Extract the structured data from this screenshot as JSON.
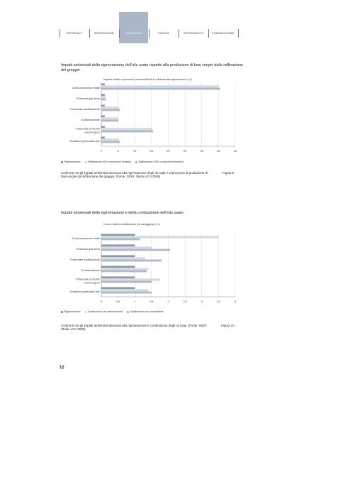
{
  "nav": {
    "tabs": [
      {
        "label": "EDITORIALE",
        "active": false
      },
      {
        "label": "INTRODUZIONE",
        "active": false
      },
      {
        "label": "CONSORZIO",
        "active": true
      },
      {
        "label": "EUROPA",
        "active": false
      },
      {
        "label": "SOSTENIBILITÀ",
        "active": false
      },
      {
        "label": "COMUNICAZIONE",
        "active": false
      }
    ]
  },
  "figure9": {
    "title": "Impatti ambientali della rigenerazione dell'olio usato rispetto alla produzione di basi vergini dalla raffinazione del greggio",
    "caption": "Confronto tra gli impatti ambientali associati alla rigenerazione degli oli usati e al processo di produzione di basi vergini da raffinazione del greggio. (Fonte: GEIR, Studio LCA 2005)",
    "number": "Figura 9"
  },
  "figure10": {
    "title": "Impatti ambientali della rigenerazione e della combustione dell'olio usato",
    "caption": "Confronto tra gli impatti ambientali associati alla rigenerazione e combustione degli oli usati. (Fonte: GEIR, Studio LCA 2005)",
    "number": "Figura 10"
  },
  "page_number": "12",
  "chart_data": [
    {
      "type": "bar",
      "orientation": "horizontal",
      "title": "Impatti ambientali della rigenerazione dell'olio usato rispetto alla produzione di basi vergini dalla raffinazione del greggio",
      "axis_title": "Impatto relativo ai processi primari sostituiti in relazione alla rigenerazione (=1)",
      "categories": [
        "Consumo risorse fossili",
        "Emissioni gas serra",
        "Potenziale acidificazione",
        "Eutrofizzazione",
        "Potenziale di rischio cancerogeno",
        "Emissioni particolato fine"
      ],
      "series": [
        {
          "name": "Rigenerazione",
          "color": "#8a96a6",
          "values": [
            1,
            1,
            1,
            1,
            1,
            1
          ]
        },
        {
          "name": "Raffinazione (0% componenti sintetici)",
          "color": "#d4dae2",
          "values": [
            35,
            1.2,
            5.3,
            5,
            15.2,
            5.3
          ]
        },
        {
          "name": "Raffinazione (30% componenti sintetici)",
          "color": "#aeb9c6",
          "values": [
            35.5,
            1.3,
            5.5,
            5.1,
            15.5,
            5.5
          ]
        }
      ],
      "xticks": [
        "0",
        "5",
        "10",
        "15",
        "20",
        "25",
        "30",
        "35",
        "40"
      ],
      "xlim": [
        0,
        40
      ],
      "grid": true,
      "legend_position": "bottom"
    },
    {
      "type": "bar",
      "orientation": "horizontal",
      "title": "Impatti ambientali della rigenerazione e della combustione dell'olio usato",
      "axis_title": "Carico relativo al trattamento più vantaggioso (=1)",
      "categories": [
        "Consumo risorse fossili",
        "Emissioni gas serra",
        "Potenziale acidificazione",
        "Eutrofizzazione",
        "Potenziale di rischio cancerogeno",
        "Emissioni particolato fine"
      ],
      "series": [
        {
          "name": "Rigenerazione",
          "color": "#8a96a6",
          "values": [
            1,
            1,
            1,
            1,
            1,
            1
          ]
        },
        {
          "name": "Sostituzione mix carbone/coke",
          "color": "#d4dae2",
          "values": [
            3.5,
            1.5,
            1.3,
            1.4,
            1.75,
            1.4
          ]
        },
        {
          "name": "Sostituzione olio combustibile",
          "color": "#aeb9c6",
          "values": [
            1.15,
            2.05,
            1.8,
            1.35,
            1.5,
            1.5
          ]
        }
      ],
      "xticks": [
        "0",
        "0,5",
        "1",
        "1,5",
        "2",
        "2,5",
        "3",
        "3,5",
        "4"
      ],
      "xlim": [
        0,
        4
      ],
      "grid": true,
      "legend_position": "bottom"
    }
  ]
}
